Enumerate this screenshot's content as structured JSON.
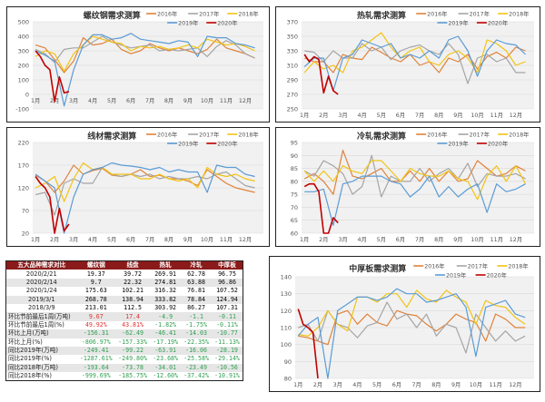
{
  "colors": {
    "2016": "#E0823A",
    "2017": "#A5A5A5",
    "2018": "#F2C314",
    "2019": "#5B9BD5",
    "2020": "#C00000"
  },
  "chart_data": [
    {
      "type": "line",
      "title": "螺纹钢需求测算",
      "ylim": [
        -100,
        500
      ],
      "yticks": [
        -100,
        0,
        100,
        200,
        300,
        400,
        500
      ],
      "xticks": [
        "1月",
        "2月",
        "3月",
        "4月",
        "5月",
        "6月",
        "7月",
        "8月",
        "9月",
        "10月",
        "11月",
        "12月"
      ],
      "series": [
        {
          "name": "2016年",
          "key": "2016",
          "values": [
            340,
            320,
            240,
            150,
            230,
            390,
            340,
            350,
            380,
            310,
            280,
            300,
            350,
            320,
            300,
            320,
            300,
            280,
            310,
            380,
            320,
            300,
            280,
            250
          ]
        },
        {
          "name": "2017年",
          "key": "2017",
          "values": [
            310,
            280,
            220,
            310,
            320,
            320,
            360,
            400,
            360,
            340,
            320,
            330,
            340,
            300,
            310,
            300,
            310,
            320,
            260,
            330,
            370,
            340,
            280,
            250
          ]
        },
        {
          "name": "2018年",
          "key": "2018",
          "values": [
            260,
            300,
            280,
            160,
            280,
            340,
            400,
            380,
            360,
            350,
            300,
            330,
            320,
            330,
            310,
            320,
            340,
            320,
            380,
            360,
            340,
            350,
            330,
            300
          ]
        },
        {
          "name": "2019年",
          "key": "2019",
          "values": [
            300,
            270,
            230,
            -80,
            170,
            340,
            410,
            410,
            380,
            390,
            420,
            380,
            370,
            360,
            350,
            370,
            360,
            260,
            400,
            390,
            390,
            350,
            340,
            320
          ]
        },
        {
          "name": "2020年",
          "key": "2020",
          "weekly": true,
          "values": [
            300,
            260,
            200,
            170,
            -50,
            120,
            10,
            20
          ]
        }
      ]
    },
    {
      "type": "line",
      "title": "热轧需求测算",
      "ylim": [
        250,
        370
      ],
      "yticks": [
        250,
        270,
        290,
        310,
        330,
        350,
        370
      ],
      "xticks": [
        "1月",
        "2月",
        "3月",
        "4月",
        "5月",
        "6月",
        "7月",
        "8月",
        "9月",
        "10月",
        "11月",
        "12月"
      ],
      "series": [
        {
          "name": "2016年",
          "key": "2016",
          "values": [
            320,
            315,
            315,
            300,
            325,
            320,
            318,
            335,
            328,
            320,
            315,
            325,
            310,
            315,
            300,
            320,
            315,
            325,
            305,
            322,
            328,
            320,
            335,
            330
          ]
        },
        {
          "name": "2017年",
          "key": "2017",
          "values": [
            330,
            328,
            315,
            330,
            320,
            320,
            340,
            330,
            335,
            318,
            330,
            335,
            338,
            330,
            325,
            340,
            325,
            285,
            320,
            325,
            315,
            320,
            300,
            300
          ]
        },
        {
          "name": "2018年",
          "key": "2018",
          "values": [
            300,
            315,
            305,
            310,
            300,
            330,
            335,
            345,
            355,
            335,
            320,
            330,
            335,
            315,
            310,
            325,
            330,
            320,
            300,
            345,
            340,
            330,
            310,
            315
          ]
        },
        {
          "name": "2019年",
          "key": "2019",
          "values": [
            308,
            320,
            320,
            275,
            320,
            325,
            345,
            340,
            335,
            340,
            320,
            325,
            320,
            330,
            320,
            345,
            350,
            330,
            295,
            330,
            345,
            340,
            338,
            325
          ]
        },
        {
          "name": "2020年",
          "key": "2020",
          "weekly": true,
          "values": [
            325,
            315,
            322,
            318,
            272,
            295,
            275,
            270
          ]
        }
      ]
    },
    {
      "type": "line",
      "title": "线材需求测算",
      "ylim": [
        20,
        220
      ],
      "yticks": [
        20,
        70,
        120,
        170,
        220
      ],
      "xticks": [
        "1月",
        "2月",
        "3月",
        "4月",
        "5月",
        "6月",
        "7月",
        "8月",
        "9月",
        "10月",
        "11月",
        "12月"
      ],
      "series": [
        {
          "name": "2016年",
          "key": "2016",
          "values": [
            148,
            135,
            110,
            135,
            170,
            150,
            158,
            163,
            148,
            145,
            150,
            160,
            145,
            148,
            140,
            140,
            135,
            125,
            160,
            145,
            130,
            120,
            115,
            110
          ]
        },
        {
          "name": "2017年",
          "key": "2017",
          "values": [
            105,
            110,
            60,
            130,
            140,
            130,
            130,
            165,
            150,
            145,
            150,
            145,
            150,
            140,
            145,
            140,
            140,
            145,
            140,
            150,
            155,
            140,
            125,
            120
          ]
        },
        {
          "name": "2018年",
          "key": "2018",
          "values": [
            120,
            130,
            145,
            90,
            140,
            175,
            160,
            165,
            150,
            150,
            150,
            140,
            140,
            150,
            140,
            135,
            140,
            120,
            165,
            150,
            145,
            150,
            140,
            135
          ]
        },
        {
          "name": "2019年",
          "key": "2019",
          "values": [
            150,
            135,
            120,
            20,
            100,
            150,
            160,
            165,
            175,
            170,
            168,
            165,
            160,
            165,
            155,
            160,
            155,
            155,
            110,
            170,
            165,
            165,
            150,
            145
          ]
        },
        {
          "name": "2020年",
          "key": "2020",
          "weekly": true,
          "values": [
            145,
            130,
            120,
            100,
            20,
            75,
            25,
            40
          ]
        }
      ]
    },
    {
      "type": "line",
      "title": "冷轧需求测算",
      "ylim": [
        60,
        95
      ],
      "yticks": [
        60,
        65,
        70,
        75,
        80,
        85,
        90,
        95
      ],
      "xticks": [
        "1月",
        "2月",
        "3月",
        "4月",
        "5月",
        "6月",
        "7月",
        "8月",
        "9月",
        "10月",
        "11月",
        "12月"
      ],
      "series": [
        {
          "name": "2016年",
          "key": "2016",
          "values": [
            81,
            83,
            80,
            75,
            92,
            82,
            81,
            83,
            85,
            80,
            80,
            84,
            80,
            85,
            80,
            84,
            80,
            81,
            88,
            85,
            82,
            83,
            86,
            84
          ]
        },
        {
          "name": "2017年",
          "key": "2017",
          "values": [
            84,
            82,
            88,
            86,
            83,
            75,
            78,
            90,
            74,
            82,
            80,
            80,
            85,
            80,
            83,
            85,
            81,
            87,
            78,
            83,
            82,
            82,
            83,
            81
          ]
        },
        {
          "name": "2018年",
          "key": "2018",
          "values": [
            84,
            80,
            84,
            80,
            86,
            84,
            83,
            88,
            88,
            84,
            80,
            85,
            83,
            82,
            82,
            84,
            81,
            80,
            73,
            82,
            86,
            80,
            86,
            79
          ]
        },
        {
          "name": "2019年",
          "key": "2019",
          "values": [
            76,
            76,
            77,
            63,
            79,
            80,
            82,
            82,
            82,
            80,
            79,
            74,
            77,
            82,
            74,
            78,
            74,
            77,
            79,
            68,
            79,
            76,
            77,
            79
          ]
        },
        {
          "name": "2020年",
          "key": "2020",
          "weekly": true,
          "values": [
            78,
            79,
            79,
            76,
            60,
            60,
            66,
            64
          ]
        }
      ]
    },
    {
      "type": "line",
      "title": "中厚板需求测算",
      "ylim": [
        80,
        140
      ],
      "yticks": [
        80,
        90,
        100,
        110,
        120,
        130,
        140
      ],
      "xticks": [
        "1月",
        "2月",
        "3月",
        "4月",
        "5月",
        "6月",
        "7月",
        "8月",
        "9月",
        "10月",
        "11月",
        "12月"
      ],
      "series": [
        {
          "name": "2016年",
          "key": "2016",
          "values": [
            105,
            104,
            102,
            100,
            118,
            120,
            112,
            118,
            113,
            111,
            120,
            118,
            117,
            112,
            108,
            112,
            118,
            115,
            113,
            102,
            118,
            115,
            110,
            110
          ]
        },
        {
          "name": "2017年",
          "key": "2017",
          "values": [
            110,
            112,
            102,
            120,
            112,
            110,
            104,
            111,
            113,
            125,
            115,
            118,
            110,
            118,
            105,
            112,
            110,
            95,
            118,
            110,
            102,
            108,
            102,
            105
          ]
        },
        {
          "name": "2018年",
          "key": "2018",
          "values": [
            106,
            105,
            110,
            120,
            112,
            108,
            128,
            128,
            125,
            130,
            130,
            122,
            132,
            127,
            125,
            132,
            128,
            125,
            112,
            126,
            123,
            122,
            116,
            112
          ]
        },
        {
          "name": "2019年",
          "key": "2019",
          "values": [
            105,
            112,
            116,
            80,
            120,
            124,
            128,
            128,
            126,
            128,
            133,
            130,
            130,
            125,
            126,
            128,
            130,
            122,
            93,
            122,
            124,
            126,
            118,
            116
          ]
        },
        {
          "name": "2020年",
          "key": "2020",
          "weekly": true,
          "values": [
            121,
            112,
            110,
            107,
            80
          ]
        }
      ]
    }
  ],
  "table": {
    "header": [
      "五大品种需求对比",
      "螺纹钢",
      "线盘",
      "热轧",
      "冷轧",
      "中厚板"
    ],
    "rows": [
      {
        "label": "2020/2/21",
        "values": [
          "19.37",
          "39.72",
          "269.91",
          "62.78",
          "96.75"
        ],
        "tone": "plain"
      },
      {
        "label": "2020/2/14",
        "values": [
          "9.7",
          "22.32",
          "274.81",
          "63.88",
          "96.86"
        ],
        "tone": "plain"
      },
      {
        "label": "2020/1/24",
        "values": [
          "175.63",
          "102.21",
          "316.32",
          "76.81",
          "107.52"
        ],
        "tone": "plain"
      },
      {
        "label": "2019/3/1",
        "values": [
          "268.78",
          "138.94",
          "333.82",
          "78.84",
          "124.94"
        ],
        "tone": "plain"
      },
      {
        "label": "2018/3/9",
        "values": [
          "213.01",
          "112.5",
          "303.92",
          "86.27",
          "107.31"
        ],
        "tone": "plain"
      },
      {
        "label": "环比节前最后1周(万吨)",
        "values": [
          "9.67",
          "17.4",
          "-4.9",
          "-1.1",
          "-0.11"
        ],
        "tone": "mixed"
      },
      {
        "label": "环比节前最后1周(%)",
        "values": [
          "49.92%",
          "43.81%",
          "-1.82%",
          "-1.75%",
          "-0.11%"
        ],
        "tone": "mixed"
      },
      {
        "label": "环比上月(万吨)",
        "values": [
          "-156.31",
          "-62.49",
          "-46.41",
          "-14.03",
          "-10.77"
        ],
        "tone": "neg"
      },
      {
        "label": "环比上月(%)",
        "values": [
          "-806.97%",
          "-157.33%",
          "-17.19%",
          "-22.35%",
          "-11.13%"
        ],
        "tone": "neg"
      },
      {
        "label": "同比2019年(万吨)",
        "values": [
          "-249.41",
          "-99.22",
          "-63.91",
          "-16.06",
          "-28.19"
        ],
        "tone": "neg"
      },
      {
        "label": "同比2019年(%)",
        "values": [
          "-1287.61%",
          "-249.80%",
          "-23.68%",
          "-25.58%",
          "-29.14%"
        ],
        "tone": "neg"
      },
      {
        "label": "同比2018年(万吨)",
        "values": [
          "-193.64",
          "-73.78",
          "-34.01",
          "-23.49",
          "-10.56"
        ],
        "tone": "neg"
      },
      {
        "label": "同比2018年(%)",
        "values": [
          "-999.69%",
          "-185.75%",
          "-12.60%",
          "-37.42%",
          "-10.91%"
        ],
        "tone": "neg"
      }
    ]
  }
}
